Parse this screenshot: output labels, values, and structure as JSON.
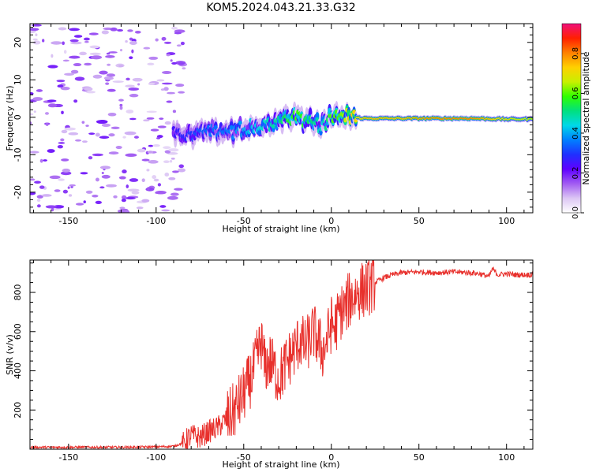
{
  "title": "KOM5.2024.043.21.33.G32",
  "chart_data": [
    {
      "type": "heatmap",
      "xlabel": "Height of straight line (km)",
      "ylabel": "Frequency (Hz)",
      "xlim": [
        -172,
        115
      ],
      "ylim": [
        -25.5,
        25
      ],
      "xticks": [
        -150,
        -100,
        -50,
        0,
        50,
        100
      ],
      "yticks": [
        -20,
        -10,
        0,
        10,
        20
      ],
      "colorbar": {
        "label": "Normalized spectral amplitude",
        "range": [
          0,
          0.95
        ],
        "ticks": [
          0.0,
          0.2,
          0.4,
          0.6,
          0.8
        ],
        "colormap": [
          "#ffffff",
          "#dcc6f4",
          "#a25cf2",
          "#5f00ff",
          "#2030ff",
          "#0080ff",
          "#00d8e8",
          "#00e080",
          "#30ff00",
          "#c8f000",
          "#ffd000",
          "#ff8000",
          "#ff2000",
          "#f0107a"
        ]
      },
      "ridge": {
        "x": [
          -90,
          -80,
          -70,
          -60,
          -50,
          -40,
          -30,
          -20,
          -10,
          -5,
          0,
          5,
          10,
          20,
          40,
          60,
          80,
          100,
          115
        ],
        "freq": [
          -5,
          -4.5,
          -4,
          -4,
          -3,
          -2,
          -1,
          0,
          -1.5,
          -2,
          0.5,
          0.8,
          0,
          -0.3,
          -0.3,
          -0.3,
          -0.3,
          -0.5,
          -0.5
        ],
        "amplitude": [
          0.25,
          0.3,
          0.35,
          0.35,
          0.4,
          0.45,
          0.5,
          0.6,
          0.5,
          0.45,
          0.6,
          0.6,
          0.7,
          0.75,
          0.75,
          0.8,
          0.8,
          0.7,
          0.65
        ]
      },
      "noise_region": {
        "x": [
          -172,
          -90
        ],
        "amplitude": [
          0.05,
          0.2
        ]
      }
    },
    {
      "type": "line",
      "xlabel": "Height of straight line (km)",
      "ylabel": "SNR (v/v)",
      "xlim": [
        -172,
        115
      ],
      "ylim": [
        0,
        965
      ],
      "xticks": [
        -150,
        -100,
        -50,
        0,
        50,
        100
      ],
      "yticks": [
        200,
        400,
        600,
        800
      ],
      "series": [
        {
          "color": "#e8302c",
          "x": [
            -172,
            -150,
            -120,
            -100,
            -90,
            -85,
            -80,
            -75,
            -70,
            -65,
            -60,
            -55,
            -50,
            -45,
            -42,
            -40,
            -38,
            -35,
            -30,
            -25,
            -20,
            -18,
            -15,
            -10,
            -5,
            -3,
            0,
            2,
            5,
            8,
            10,
            15,
            20,
            25,
            30,
            35,
            40,
            50,
            60,
            70,
            80,
            85,
            90,
            92,
            95,
            100,
            105,
            110,
            115
          ],
          "y": [
            10,
            10,
            10,
            12,
            15,
            30,
            70,
            60,
            90,
            110,
            150,
            200,
            280,
            380,
            480,
            550,
            420,
            450,
            360,
            450,
            520,
            560,
            520,
            600,
            500,
            540,
            640,
            620,
            700,
            720,
            760,
            800,
            820,
            850,
            875,
            890,
            900,
            905,
            900,
            905,
            900,
            895,
            880,
            920,
            890,
            895,
            890,
            890,
            890
          ]
        }
      ]
    }
  ]
}
